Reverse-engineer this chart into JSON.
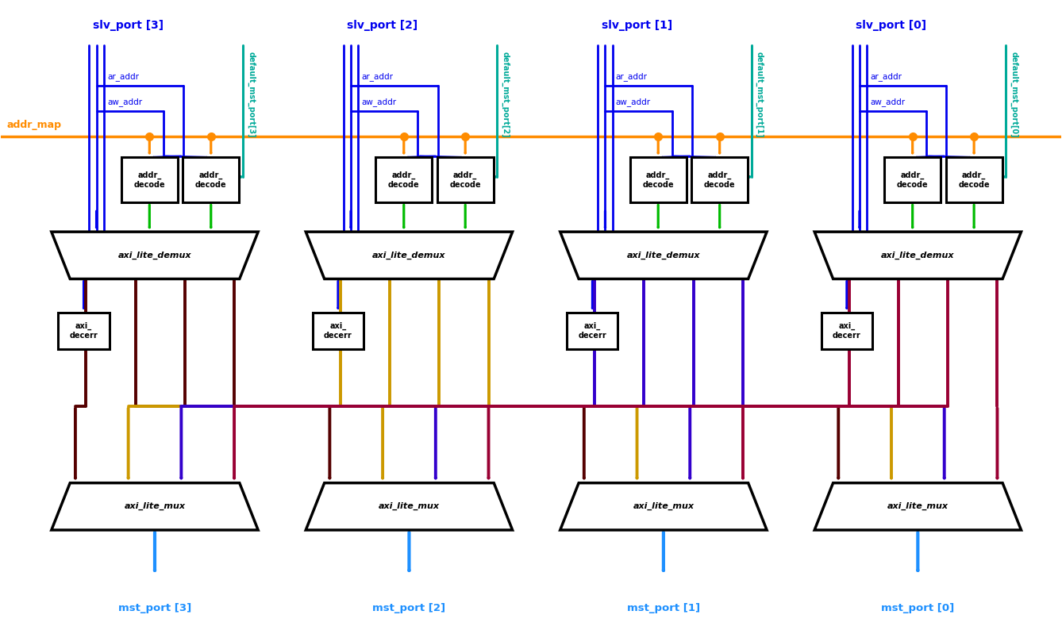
{
  "bg_color": "#ffffff",
  "fig_width": 13.38,
  "fig_height": 7.94,
  "slv_port_labels": [
    "slv_port [3]",
    "slv_port [2]",
    "slv_port [1]",
    "slv_port [0]"
  ],
  "mst_port_labels": [
    "mst_port [3]",
    "mst_port [2]",
    "mst_port [1]",
    "mst_port [0]"
  ],
  "default_mst_labels": [
    "default_mst_port[3]",
    "default_mst_port[2]",
    "default_mst_port[1]",
    "default_mst_port[0]"
  ],
  "addr_map_label": "addr_map",
  "demux_label": "axi_lite_demux",
  "mux_label": "axi_lite_mux",
  "addr_decode_label": "addr_\ndecode",
  "decerr_label": "axi_\ndecerr",
  "ar_addr_label": "ar_addr",
  "aw_addr_label": "aw_addr",
  "colors": {
    "blue": "#0000EE",
    "light_blue": "#1E90FF",
    "orange": "#FF8C00",
    "green": "#00BB00",
    "teal": "#00AA99",
    "dark_brown": "#550000",
    "gold": "#CC9900",
    "purple": "#3300CC",
    "crimson": "#990033",
    "white": "#FFFFFF",
    "black": "#000000"
  }
}
